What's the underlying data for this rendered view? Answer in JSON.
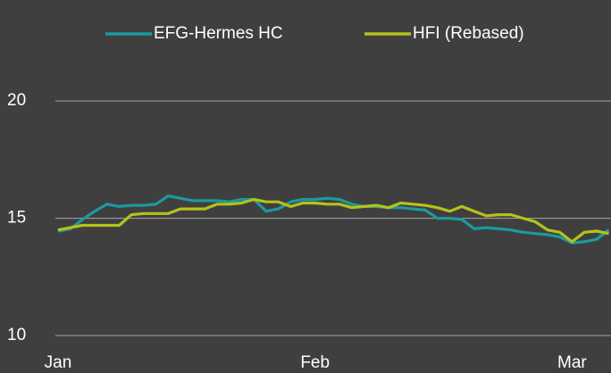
{
  "chart_data": {
    "type": "line",
    "categories": [
      "Jan",
      null,
      null,
      null,
      null,
      null,
      null,
      null,
      null,
      null,
      null,
      null,
      null,
      null,
      null,
      null,
      null,
      null,
      null,
      null,
      null,
      "Feb",
      null,
      null,
      null,
      null,
      null,
      null,
      null,
      null,
      null,
      null,
      null,
      null,
      null,
      null,
      null,
      null,
      null,
      null,
      null,
      null,
      "Mar",
      null,
      null,
      null
    ],
    "series": [
      {
        "name": "EFG-Hermes HC",
        "color": "#1b9aa0",
        "values": [
          14.45,
          14.55,
          14.95,
          15.3,
          15.6,
          15.5,
          15.55,
          15.55,
          15.6,
          15.95,
          15.85,
          15.75,
          15.75,
          15.75,
          15.7,
          15.8,
          15.8,
          15.3,
          15.4,
          15.7,
          15.8,
          15.8,
          15.85,
          15.8,
          15.6,
          15.5,
          15.5,
          15.45,
          15.45,
          15.4,
          15.35,
          15.0,
          15.0,
          14.95,
          14.55,
          14.6,
          14.55,
          14.5,
          14.4,
          14.35,
          14.3,
          14.2,
          13.95,
          14.0,
          14.1,
          14.5
        ]
      },
      {
        "name": "HFI (Rebased)",
        "color": "#b5c219",
        "values": [
          14.5,
          14.6,
          14.7,
          14.7,
          14.7,
          14.7,
          15.15,
          15.2,
          15.2,
          15.2,
          15.4,
          15.4,
          15.4,
          15.6,
          15.6,
          15.65,
          15.8,
          15.7,
          15.7,
          15.5,
          15.65,
          15.65,
          15.6,
          15.6,
          15.45,
          15.5,
          15.55,
          15.45,
          15.65,
          15.6,
          15.55,
          15.45,
          15.3,
          15.5,
          15.3,
          15.1,
          15.15,
          15.15,
          15.0,
          14.85,
          14.5,
          14.4,
          14.0,
          14.4,
          14.45,
          14.35
        ]
      }
    ],
    "ylim": [
      10,
      24
    ],
    "yticks": [
      10,
      15,
      20
    ],
    "grid": true,
    "legend": "top"
  }
}
